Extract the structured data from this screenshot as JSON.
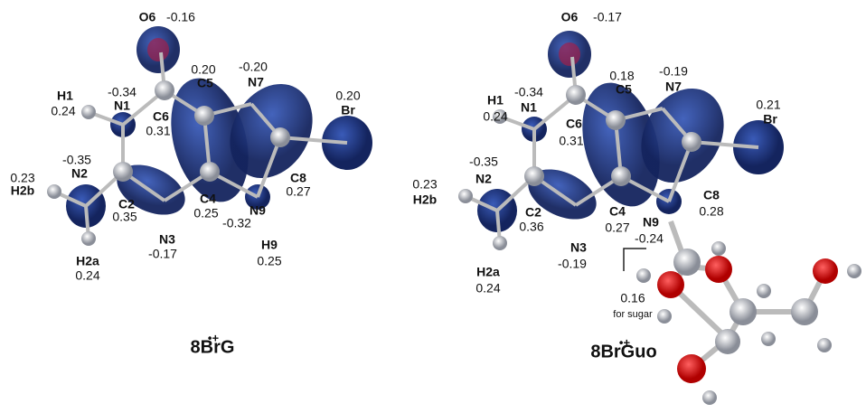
{
  "panels": [
    {
      "title": {
        "main": "8BrG",
        "superscript": "•+"
      },
      "atoms": [
        {
          "label": "O6",
          "value": "-0.16"
        },
        {
          "label": "C5",
          "value": "0.20"
        },
        {
          "label": "N7",
          "value": "-0.20"
        },
        {
          "label": "H1",
          "value": "0.24"
        },
        {
          "label": "N1",
          "value": "-0.34"
        },
        {
          "label": "C6",
          "value": "0.31"
        },
        {
          "label": "Br",
          "value": "0.20"
        },
        {
          "label": "N2",
          "value": "-0.35"
        },
        {
          "label": "H2b",
          "value": "0.23"
        },
        {
          "label": "C8",
          "value": "0.27"
        },
        {
          "label": "C2",
          "value": "0.35"
        },
        {
          "label": "C4",
          "value": "0.25"
        },
        {
          "label": "N9",
          "value": "-0.32"
        },
        {
          "label": "N3",
          "value": "-0.17"
        },
        {
          "label": "H9",
          "value": "0.25"
        },
        {
          "label": "H2a",
          "value": "0.24"
        }
      ]
    },
    {
      "title": {
        "main": "8BrGuo",
        "superscript": "•+"
      },
      "atoms": [
        {
          "label": "O6",
          "value": "-0.17"
        },
        {
          "label": "C5",
          "value": "0.18"
        },
        {
          "label": "N7",
          "value": "-0.19"
        },
        {
          "label": "H1",
          "value": "0.24"
        },
        {
          "label": "N1",
          "value": "-0.34"
        },
        {
          "label": "C6",
          "value": "0.31"
        },
        {
          "label": "Br",
          "value": "0.21"
        },
        {
          "label": "N2",
          "value": "-0.35"
        },
        {
          "label": "H2b",
          "value": "0.23"
        },
        {
          "label": "C8",
          "value": "0.28"
        },
        {
          "label": "C2",
          "value": "0.36"
        },
        {
          "label": "C4",
          "value": "0.27"
        },
        {
          "label": "N9",
          "value": "-0.24"
        },
        {
          "label": "N3",
          "value": "-0.19"
        },
        {
          "label": "H2a",
          "value": "0.24"
        }
      ],
      "sugar_note": {
        "value": "0.16",
        "label": "for sugar"
      }
    }
  ]
}
